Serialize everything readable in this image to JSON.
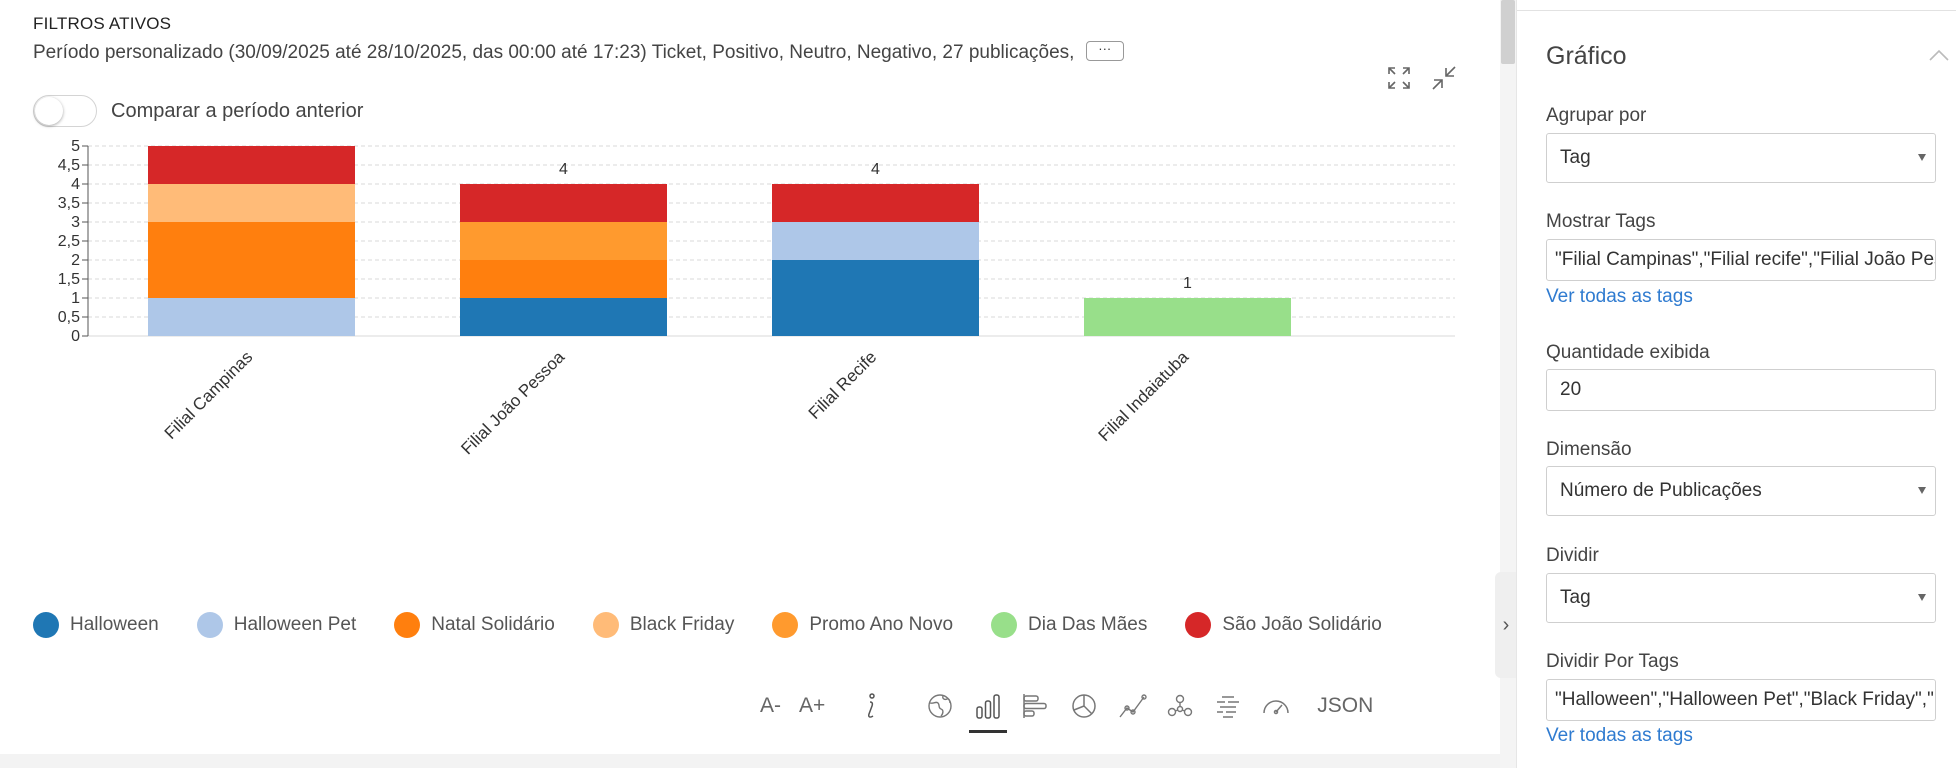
{
  "filters": {
    "title": "FILTROS ATIVOS",
    "description": "Período personalizado (30/09/2025 até 28/10/2025, das 00:00 até 17:23) Ticket, Positivo, Neutro, Negativo, 27 publicações,",
    "more_label": "···"
  },
  "compare": {
    "label": "Comparar a período anterior",
    "enabled": false
  },
  "chart_data": {
    "type": "bar",
    "stacked": true,
    "categories": [
      "Filial Campinas",
      "Filial João Pessoa",
      "Filial Recife",
      "Filial Indaiatuba"
    ],
    "totals": [
      5,
      4,
      4,
      1
    ],
    "series": [
      {
        "name": "Halloween",
        "color": "#1f77b4",
        "values": [
          0,
          1,
          2,
          0
        ]
      },
      {
        "name": "Halloween Pet",
        "color": "#aec7e8",
        "values": [
          1,
          0,
          1,
          0
        ]
      },
      {
        "name": "Natal Solidário",
        "color": "#ff7f0e",
        "values": [
          2,
          1,
          0,
          0
        ]
      },
      {
        "name": "Black Friday",
        "color": "#ffbb78",
        "values": [
          1,
          0,
          0,
          0
        ]
      },
      {
        "name": "Promo Ano Novo",
        "color": "#ff9a2e",
        "values": [
          0,
          1,
          0,
          0
        ]
      },
      {
        "name": "Dia Das Mães",
        "color": "#98df8a",
        "values": [
          0,
          0,
          0,
          1
        ]
      },
      {
        "name": "São João Solidário",
        "color": "#d62728",
        "values": [
          1,
          1,
          1,
          0
        ]
      }
    ],
    "yticks": [
      "0",
      "0,5",
      "1",
      "1,5",
      "2",
      "2,5",
      "3",
      "3,5",
      "4",
      "4,5",
      "5"
    ],
    "ylim": [
      0,
      5
    ],
    "grid": true,
    "title": "",
    "xlabel": "",
    "ylabel": ""
  },
  "legend": [
    {
      "label": "Halloween",
      "color": "#1f77b4"
    },
    {
      "label": "Halloween Pet",
      "color": "#aec7e8"
    },
    {
      "label": "Natal Solidário",
      "color": "#ff7f0e"
    },
    {
      "label": "Black Friday",
      "color": "#ffbb78"
    },
    {
      "label": "Promo Ano Novo",
      "color": "#ff9a2e"
    },
    {
      "label": "Dia Das Mães",
      "color": "#98df8a"
    },
    {
      "label": "São João Solidário",
      "color": "#d62728"
    }
  ],
  "toolbar": {
    "font_decrease": "A-",
    "font_increase": "A+",
    "json_label": "JSON",
    "icons": [
      "info-icon",
      "globe-map-icon",
      "bar-chart-icon",
      "horizontal-bar-icon",
      "pie-chart-icon",
      "line-chart-icon",
      "network-icon",
      "word-cloud-icon",
      "gauge-icon"
    ]
  },
  "panel": {
    "title": "Gráfico",
    "group_by": {
      "label": "Agrupar por",
      "value": "Tag"
    },
    "show_tags": {
      "label": "Mostrar Tags",
      "value": "\"Filial Campinas\",\"Filial recife\",\"Filial João Pessoa\"",
      "link": "Ver todas as tags"
    },
    "quantity": {
      "label": "Quantidade exibida",
      "value": "20"
    },
    "dimension": {
      "label": "Dimensão",
      "value": "Número de Publicações"
    },
    "divide": {
      "label": "Dividir",
      "value": "Tag"
    },
    "divide_by_tags": {
      "label": "Dividir Por Tags",
      "value": "\"Halloween\",\"Halloween Pet\",\"Black Friday\",\"Natal Solidário\"",
      "link": "Ver todas as tags"
    }
  }
}
